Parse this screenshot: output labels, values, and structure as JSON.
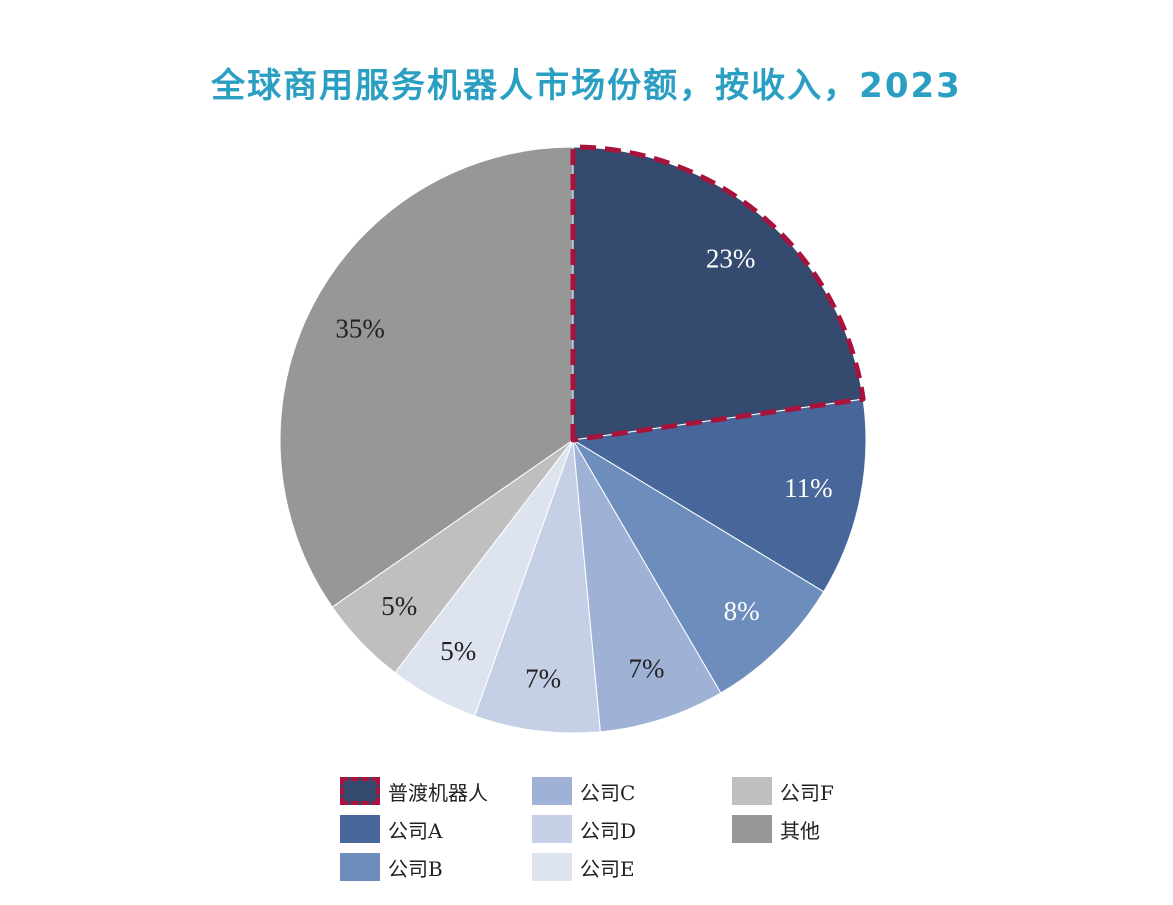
{
  "chart_data": {
    "type": "pie",
    "title": "全球商用服务机器人市场份额，按收入，2023",
    "slices": [
      {
        "name": "普渡机器人",
        "value": 23,
        "label": "23%",
        "color": "#344a6e",
        "label_color": "#ffffff",
        "highlight": true
      },
      {
        "name": "公司A",
        "value": 11,
        "label": "11%",
        "color": "#47679b",
        "label_color": "#ffffff",
        "highlight": false
      },
      {
        "name": "公司B",
        "value": 8,
        "label": "8%",
        "color": "#6d8dbd",
        "label_color": "#ffffff",
        "highlight": false
      },
      {
        "name": "公司C",
        "value": 7,
        "label": "7%",
        "color": "#9fb2d6",
        "label_color": "#222222",
        "highlight": false
      },
      {
        "name": "公司D",
        "value": 7,
        "label": "7%",
        "color": "#c5d0e6",
        "label_color": "#222222",
        "highlight": false
      },
      {
        "name": "公司E",
        "value": 5,
        "label": "5%",
        "color": "#dde3ef",
        "label_color": "#222222",
        "highlight": false
      },
      {
        "name": "公司F",
        "value": 5,
        "label": "5%",
        "color": "#bfbfbf",
        "label_color": "#222222",
        "highlight": false
      },
      {
        "name": "其他",
        "value": 35,
        "label": "35%",
        "color": "#979797",
        "label_color": "#222222",
        "highlight": false
      }
    ],
    "start_angle": "12 o'clock, clockwise",
    "highlight_border_color": "#a8133c",
    "legend_position": "bottom"
  }
}
